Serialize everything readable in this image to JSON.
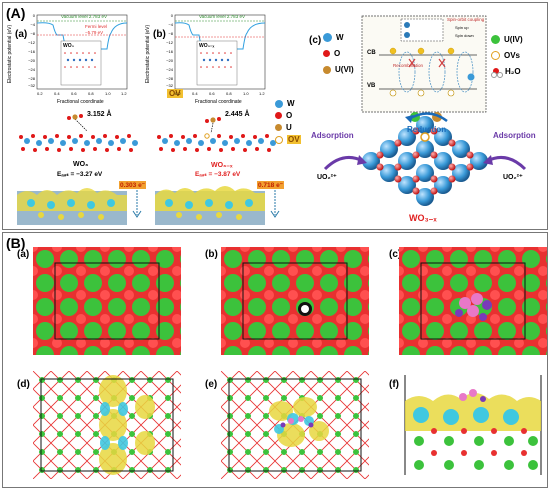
{
  "panelA": {
    "label": "(A)",
    "a": {
      "label": "(a)",
      "ylabel": "Electrostatic potential (eV)",
      "xlabel": "Fractional coordinate",
      "vacuum": "Vacuum level 2.783 eV",
      "fermi": "Fermi level",
      "fermi_val": "−5.79 eV",
      "inset": "WO₃",
      "yticks": [
        "0",
        "−4",
        "−8",
        "−12",
        "−16",
        "−20",
        "−24",
        "−28",
        "−32"
      ],
      "xticks": [
        "0.2",
        "0.4",
        "0.6",
        "0.8",
        "1.0",
        "1.2"
      ],
      "bond": "3.152 Å",
      "material": "WO₃",
      "eads": "Eₐₔₛ = −3.27 eV",
      "charge": "0.303 e⁻"
    },
    "b": {
      "label": "(b)",
      "ylabel": "Electrostatic potential (eV)",
      "xlabel": "Fractional coordinate",
      "vacuum": "Vacuum level 2.783 eV",
      "inset": "WO₃₋ₓ",
      "ov": "OV",
      "yticks": [
        "0",
        "−4",
        "−8",
        "−12",
        "−16",
        "−20",
        "−24",
        "−28",
        "−32"
      ],
      "xticks": [
        "0.2",
        "0.4",
        "0.6",
        "0.8",
        "1.0",
        "1.2"
      ],
      "bond": "2.445 Å",
      "material": "WO₃₋ₓ",
      "eads": "Eₐₔₛ = −3.87 eV",
      "charge": "0.718 e⁻"
    },
    "legend_mid": [
      "W",
      "O",
      "U",
      "OV"
    ],
    "c": {
      "label": "(c)",
      "legend": [
        "W",
        "O",
        "U(VI)",
        "U(IV)",
        "OVs",
        "H₂O"
      ],
      "cb": "CB",
      "vb": "VB",
      "spin_coupling": "Spin-orbit coupling",
      "spin_up": "Spin up",
      "spin_down": "Spin down",
      "recomb": "Recombination",
      "reduction": "Reduction",
      "adsorption_left": "Adsorption",
      "adsorption_right": "Adsorption",
      "uo2_left": "UO₂²⁺",
      "uo2_right": "UO₂²⁺",
      "material": "WO₃₋ₓ"
    }
  },
  "panelB": {
    "label": "(B)",
    "tiles": [
      "(a)",
      "(b)",
      "(c)",
      "(d)",
      "(e)",
      "(f)"
    ]
  },
  "colors": {
    "green_atom": "#3cc23c",
    "red_atom": "#e01818",
    "blue_atom": "#3a9ad8",
    "yellow_iso": "#e8d840",
    "cyan_iso": "#40c8e0",
    "purple": "#7a3ab8"
  }
}
